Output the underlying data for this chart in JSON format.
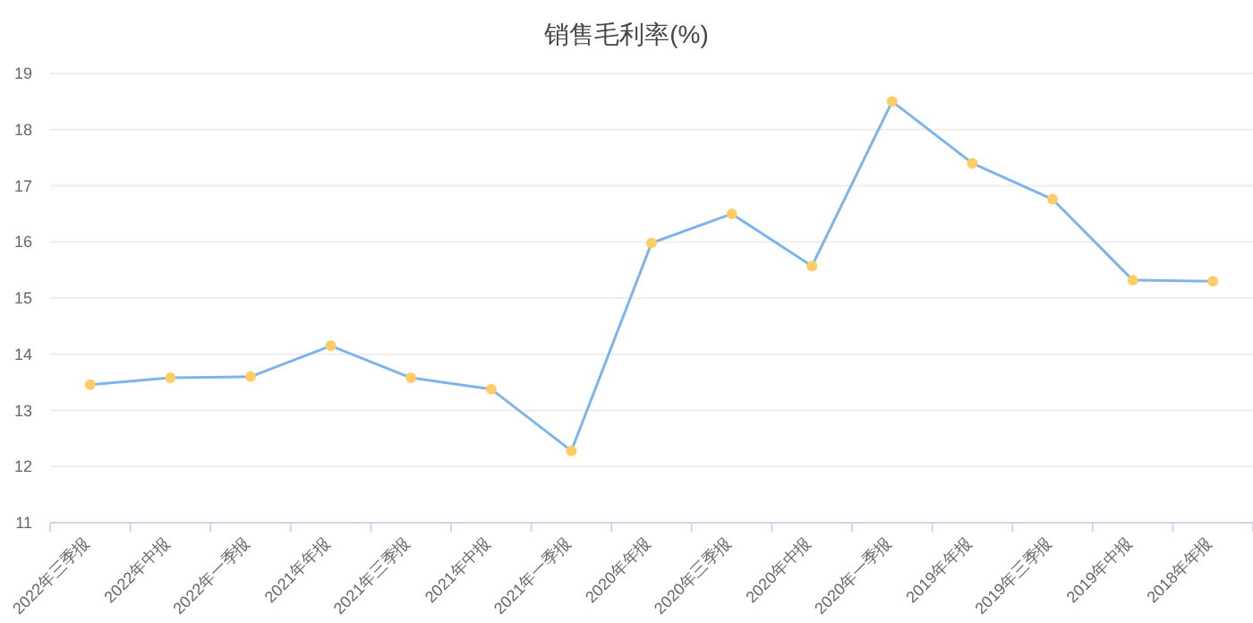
{
  "chart_data": {
    "type": "line",
    "title": "销售毛利率(%)",
    "categories": [
      "2022年三季报",
      "2022年中报",
      "2022年一季报",
      "2021年年报",
      "2021年三季报",
      "2021年中报",
      "2021年一季报",
      "2020年年报",
      "2020年三季报",
      "2020年中报",
      "2020年一季报",
      "2019年年报",
      "2019年三季报",
      "2019年中报",
      "2018年年报"
    ],
    "series": [
      {
        "color": "#7cb5ec",
        "values": [
          13.46,
          13.58,
          13.6,
          14.15,
          13.58,
          13.38,
          12.28,
          15.98,
          16.5,
          15.57,
          18.5,
          17.4,
          16.76,
          15.32,
          15.3
        ]
      }
    ],
    "ylim": [
      11,
      19
    ],
    "yticks": [
      11,
      12,
      13,
      14,
      15,
      16,
      17,
      18,
      19
    ],
    "grid": "y",
    "marker": "circle"
  }
}
